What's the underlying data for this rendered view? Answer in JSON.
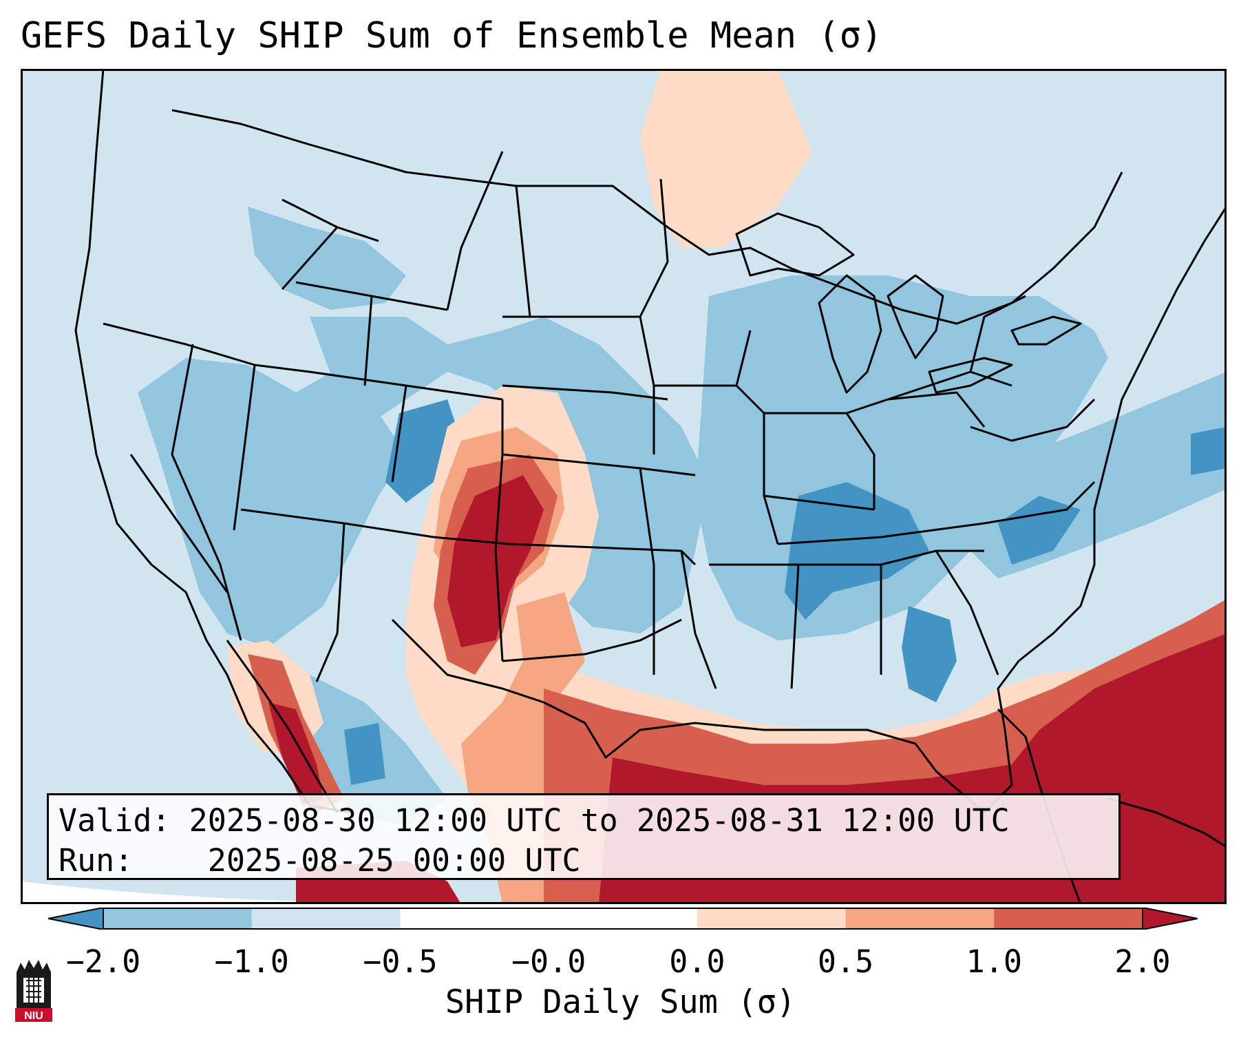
{
  "title": "GEFS Daily SHIP Sum of Ensemble Mean (σ)",
  "info": {
    "valid_label": "Valid:",
    "valid_value": "2025-08-30 12:00 UTC to 2025-08-31 12:00 UTC",
    "run_label": "Run:",
    "run_value": "2025-08-25 00:00 UTC"
  },
  "colorbar": {
    "label": "SHIP Daily Sum (σ)",
    "ticks": [
      "−2.0",
      "−1.0",
      "−0.5",
      "−0.0",
      "0.0",
      "0.5",
      "1.0",
      "2.0"
    ],
    "colors": [
      "#4393c3",
      "#92c5de",
      "#d1e5f0",
      "#ffffff",
      "#fddbc7",
      "#f4a582",
      "#d6604d",
      "#b2182b"
    ],
    "extend": "both"
  },
  "logo": {
    "text": "NIU",
    "primary": "#c8102e",
    "secondary": "#1a1a1a"
  },
  "map_colors": {
    "ocean": "#d1e5f0",
    "neg_strong": "#4393c3",
    "neg_mid": "#92c5de",
    "pos_light": "#fddbc7",
    "pos_mid": "#f4a582",
    "pos_high": "#d6604d",
    "pos_max": "#b2182b"
  }
}
